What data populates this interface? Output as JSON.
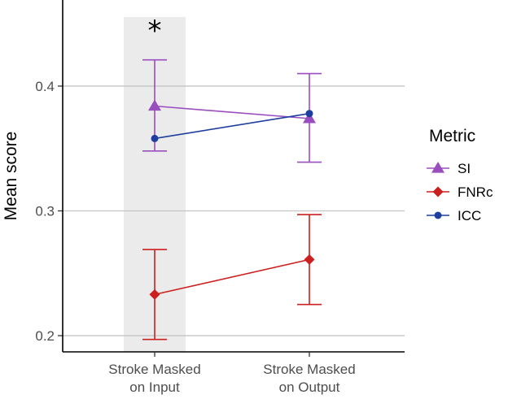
{
  "chart_data": {
    "type": "line",
    "ylabel": "Mean score",
    "ylim": [
      0.187,
      0.469
    ],
    "yticks": [
      "0.2",
      "0.3",
      "0.4"
    ],
    "categories": [
      [
        "Stroke Masked",
        "on Input"
      ],
      [
        "Stroke Masked",
        "on Output"
      ]
    ],
    "highlight_category": 0,
    "annotation": {
      "text": "*",
      "category": 0,
      "y": 0.45
    },
    "legend": {
      "title": "Metric",
      "placement": "right"
    },
    "series": [
      {
        "name": "SI",
        "marker": "triangle",
        "color": "#9a4dbf",
        "values": [
          0.384,
          0.374
        ],
        "lower": [
          0.348,
          0.339
        ],
        "upper": [
          0.421,
          0.41
        ]
      },
      {
        "name": "FNRc",
        "marker": "diamond",
        "color": "#cc1f1f",
        "values": [
          0.233,
          0.261
        ],
        "lower": [
          0.197,
          0.225
        ],
        "upper": [
          0.269,
          0.297
        ]
      },
      {
        "name": "ICC",
        "marker": "circle",
        "color": "#1f3fa0",
        "values": [
          0.358,
          0.378
        ],
        "lower": [],
        "upper": []
      }
    ]
  }
}
